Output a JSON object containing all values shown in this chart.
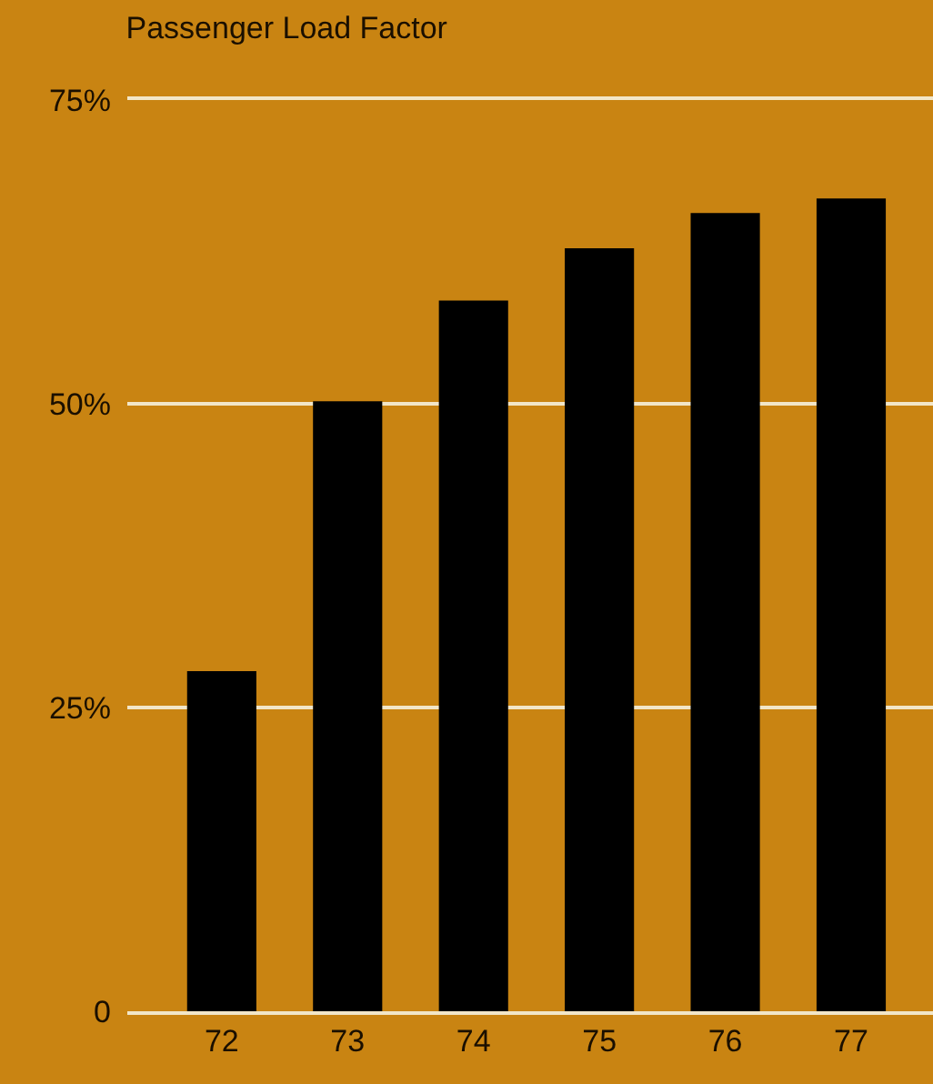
{
  "chart_data": {
    "type": "bar",
    "title": "Passenger Load Factor",
    "categories": [
      "72",
      "73",
      "74",
      "75",
      "76",
      "77"
    ],
    "values": [
      28,
      50.2,
      58.5,
      62.8,
      65.7,
      66.9
    ],
    "color": "#000000",
    "ylim": [
      0,
      75
    ],
    "yticks": [
      0,
      {
        "value": 25,
        "label": "25%"
      },
      {
        "value": 50,
        "label": "50%"
      },
      {
        "value": 75,
        "label": "75%"
      }
    ],
    "grid": "y"
  }
}
